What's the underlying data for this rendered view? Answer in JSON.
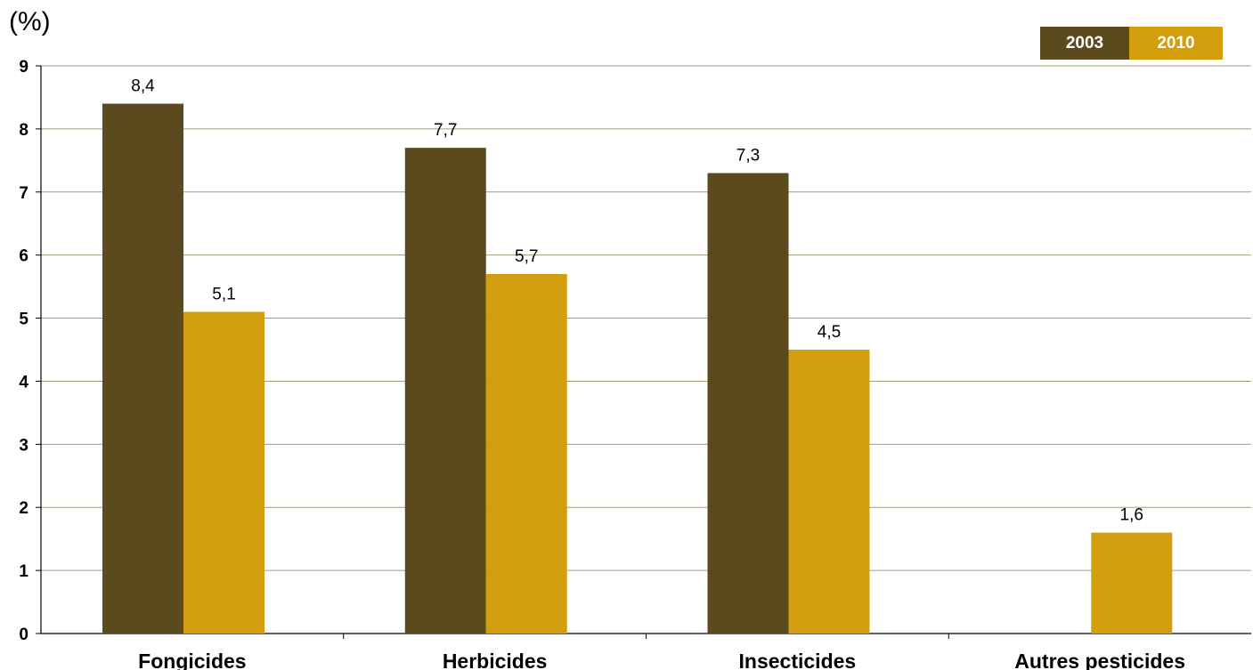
{
  "chart_data": {
    "type": "bar",
    "unit_label": "(%)",
    "categories": [
      "Fongicides",
      "Herbicides",
      "Insecticides",
      "Autres pesticides"
    ],
    "series": [
      {
        "name": "2003",
        "color": "#5c4a1f",
        "values": [
          8.4,
          7.7,
          7.3,
          null
        ],
        "labels": [
          "8,4",
          "7,7",
          "7,3",
          ""
        ]
      },
      {
        "name": "2010",
        "color": "#d39e0d",
        "values": [
          5.1,
          5.7,
          4.5,
          1.6
        ],
        "labels": [
          "5,1",
          "5,7",
          "4,5",
          "1,6"
        ]
      }
    ],
    "yticks": [
      "0",
      "1",
      "2",
      "3",
      "4",
      "5",
      "6",
      "7",
      "8",
      "9"
    ],
    "ylim": [
      0,
      9
    ],
    "grid": true,
    "legend_position": "top-right",
    "gridline_color": "#a39a7a"
  }
}
